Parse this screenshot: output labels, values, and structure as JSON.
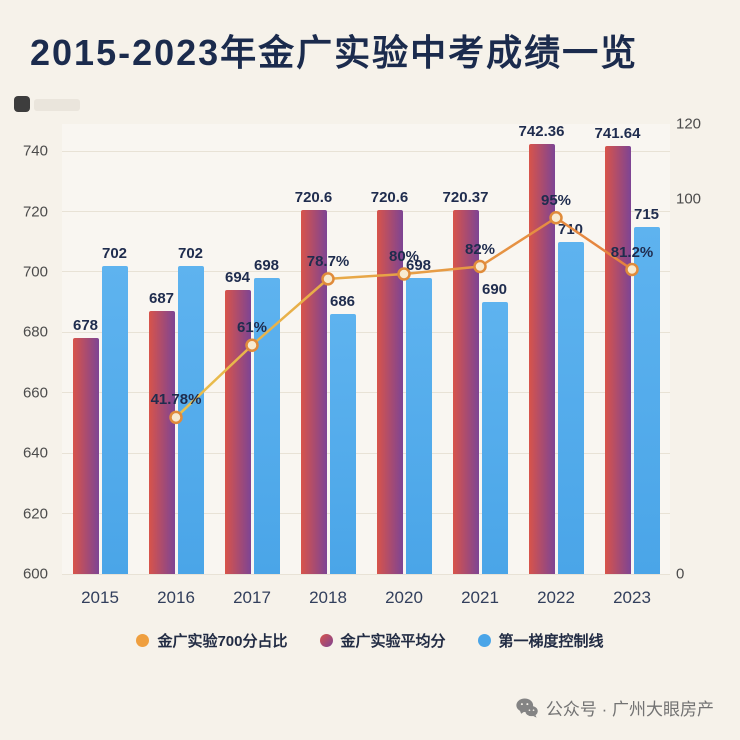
{
  "title": "2015-2023年金广实验中考成绩一览",
  "chart_data": {
    "type": "bar+line",
    "categories": [
      "2015",
      "2016",
      "2017",
      "2018",
      "2020",
      "2021",
      "2022",
      "2023"
    ],
    "series": [
      {
        "name": "金广实验平均分",
        "type": "bar",
        "axis": "left",
        "values": [
          678,
          687,
          694,
          720.6,
          720.6,
          720.37,
          742.36,
          741.64
        ],
        "labels": [
          "678",
          "687",
          "694",
          "720.6",
          "720.6",
          "720.37",
          "742.36",
          "741.64"
        ]
      },
      {
        "name": "第一梯度控制线",
        "type": "bar",
        "axis": "left",
        "values": [
          702,
          702,
          698,
          686,
          698,
          690,
          710,
          715
        ],
        "labels": [
          "702",
          "702",
          "698",
          "686",
          "698",
          "690",
          "710",
          "715"
        ]
      },
      {
        "name": "金广实验700分占比",
        "type": "line",
        "axis": "right",
        "values": [
          null,
          41.78,
          61,
          78.7,
          80,
          82,
          95,
          81.2
        ],
        "labels": [
          "",
          "41.78%",
          "61%",
          "78.7%",
          "80%",
          "82%",
          "95%",
          "81.2%"
        ]
      }
    ],
    "left_axis": {
      "min": 600,
      "max": 749,
      "ticks": [
        600,
        620,
        640,
        660,
        680,
        700,
        720,
        740
      ]
    },
    "right_axis": {
      "min": 0,
      "max": 120,
      "ticks": [
        0,
        100,
        120
      ]
    },
    "grid": true,
    "legend_position": "bottom"
  },
  "legend": [
    {
      "label": "金广实验700分占比",
      "swatch": "orange"
    },
    {
      "label": "金广实验平均分",
      "swatch": "maroon"
    },
    {
      "label": "第一梯度控制线",
      "swatch": "blue"
    }
  ],
  "colors": {
    "orange": "#ef9f3f",
    "maroon_from": "#d8544a",
    "maroon_to": "#7d4494",
    "blue": "#4aa5e8",
    "blue_light": "#5eb3ef",
    "line_from": "#e9c04d",
    "line_to": "#e5813f",
    "dot_fill": "#f7ead1",
    "dot_stroke": "#e08b3b",
    "title_color": "#1b2b4d"
  },
  "footer": {
    "text": "公众号 · 广州大眼房产"
  }
}
